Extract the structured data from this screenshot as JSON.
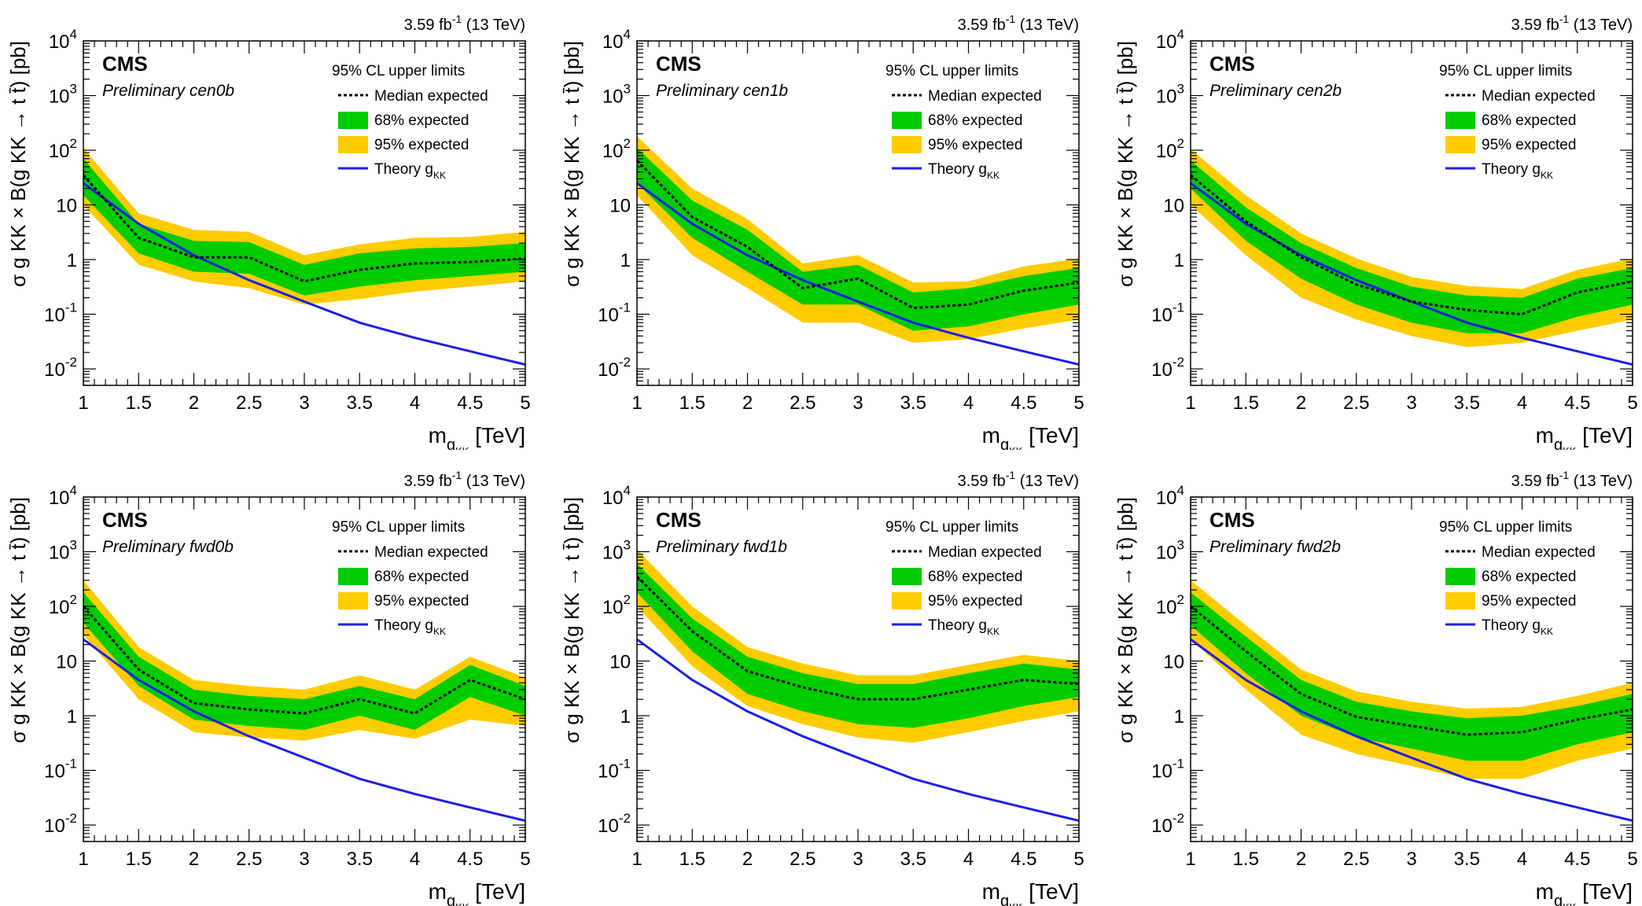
{
  "common": {
    "lumi_prefix": "3.59 fb",
    "lumi_exp": "-1",
    "lumi_suffix": " (13 TeV)",
    "experiment": "CMS",
    "legend_header": "95% CL upper limits",
    "legend_median": "Median expected",
    "legend_68": "68% expected",
    "legend_95": "95% expected",
    "legend_theory": "Theory g",
    "legend_theory_sub": "KK",
    "xlabel_main": "m",
    "xlabel_sub1": "g",
    "xlabel_sub2": "KK",
    "xlabel_unit": "[TeV]",
    "ylabel": "σ g KK × B(g KK → t t̄) [pb]",
    "x_ticks": [
      "1",
      "1.5",
      "2",
      "2.5",
      "3",
      "3.5",
      "4",
      "4.5",
      "5"
    ],
    "y_ticks": [
      {
        "base": "10",
        "exp": "-2"
      },
      {
        "base": "10",
        "exp": "-1"
      },
      {
        "base": "1",
        "exp": ""
      },
      {
        "base": "10",
        "exp": ""
      },
      {
        "base": "10",
        "exp": "2"
      },
      {
        "base": "10",
        "exp": "3"
      },
      {
        "base": "10",
        "exp": "4"
      }
    ],
    "colors": {
      "band68": "#00cc00",
      "band95": "#ffcc00",
      "theory": "#1e1ee6",
      "median": "#000000"
    }
  },
  "chart_data": [
    {
      "type": "line",
      "category": "cen0b",
      "title": "Preliminary cen0b",
      "xlim": [
        1,
        5
      ],
      "ylim": [
        0.005,
        10000
      ],
      "yscale": "log",
      "x": [
        1,
        1.5,
        2,
        2.5,
        3,
        3.5,
        4,
        4.5,
        5
      ],
      "series": [
        {
          "name": "Median expected",
          "values": [
            35,
            2.5,
            1.1,
            1.1,
            0.4,
            0.65,
            0.85,
            0.9,
            1.05
          ]
        },
        {
          "name": "68% expected",
          "lower": [
            15,
            1.3,
            0.6,
            0.55,
            0.22,
            0.32,
            0.42,
            0.5,
            0.6
          ],
          "upper": [
            70,
            4.5,
            2.2,
            2.1,
            0.8,
            1.3,
            1.6,
            1.7,
            2.0
          ]
        },
        {
          "name": "95% expected",
          "lower": [
            10,
            0.8,
            0.4,
            0.3,
            0.15,
            0.19,
            0.26,
            0.32,
            0.4
          ],
          "upper": [
            110,
            7,
            3.5,
            3.2,
            1.2,
            1.9,
            2.5,
            2.6,
            3.2
          ]
        },
        {
          "name": "Theory gKK",
          "values": [
            25,
            4.5,
            1.2,
            0.42,
            0.17,
            0.07,
            0.037,
            0.021,
            0.012
          ]
        }
      ]
    },
    {
      "type": "line",
      "category": "cen1b",
      "title": "Preliminary cen1b",
      "xlim": [
        1,
        5
      ],
      "ylim": [
        0.005,
        10000
      ],
      "yscale": "log",
      "x": [
        1,
        1.5,
        2,
        2.5,
        3,
        3.5,
        4,
        4.5,
        5
      ],
      "series": [
        {
          "name": "Median expected",
          "values": [
            65,
            6,
            1.7,
            0.3,
            0.45,
            0.13,
            0.15,
            0.27,
            0.38
          ]
        },
        {
          "name": "68% expected",
          "lower": [
            25,
            2.5,
            0.6,
            0.15,
            0.15,
            0.05,
            0.06,
            0.1,
            0.15
          ],
          "upper": [
            110,
            12,
            3.5,
            0.6,
            0.8,
            0.25,
            0.3,
            0.5,
            0.7
          ]
        },
        {
          "name": "95% expected",
          "lower": [
            15,
            1.2,
            0.3,
            0.07,
            0.07,
            0.03,
            0.035,
            0.055,
            0.08
          ],
          "upper": [
            180,
            20,
            5.5,
            0.85,
            1.2,
            0.38,
            0.4,
            0.75,
            1.05
          ]
        },
        {
          "name": "Theory gKK",
          "values": [
            25,
            4.5,
            1.2,
            0.42,
            0.17,
            0.07,
            0.037,
            0.021,
            0.012
          ]
        }
      ]
    },
    {
      "type": "line",
      "category": "cen2b",
      "title": "Preliminary cen2b",
      "xlim": [
        1,
        5
      ],
      "ylim": [
        0.005,
        10000
      ],
      "yscale": "log",
      "x": [
        1,
        1.5,
        2,
        2.5,
        3,
        3.5,
        4,
        4.5,
        5
      ],
      "series": [
        {
          "name": "Median expected",
          "values": [
            35,
            5,
            1.1,
            0.35,
            0.17,
            0.12,
            0.1,
            0.25,
            0.4
          ]
        },
        {
          "name": "68% expected",
          "lower": [
            20,
            2.2,
            0.45,
            0.15,
            0.07,
            0.045,
            0.045,
            0.09,
            0.15
          ],
          "upper": [
            65,
            9,
            2.0,
            0.7,
            0.32,
            0.22,
            0.2,
            0.45,
            0.7
          ]
        },
        {
          "name": "95% expected",
          "lower": [
            10,
            1.2,
            0.2,
            0.08,
            0.04,
            0.025,
            0.03,
            0.05,
            0.08
          ],
          "upper": [
            105,
            15,
            3.0,
            1.05,
            0.48,
            0.33,
            0.29,
            0.65,
            1.05
          ]
        },
        {
          "name": "Theory gKK",
          "values": [
            25,
            4.5,
            1.2,
            0.42,
            0.17,
            0.07,
            0.037,
            0.021,
            0.012
          ]
        }
      ]
    },
    {
      "type": "line",
      "category": "fwd0b",
      "title": "Preliminary fwd0b",
      "xlim": [
        1,
        5
      ],
      "ylim": [
        0.005,
        10000
      ],
      "yscale": "log",
      "x": [
        1,
        1.5,
        2,
        2.5,
        3,
        3.5,
        4,
        4.5,
        5
      ],
      "series": [
        {
          "name": "Median expected",
          "values": [
            100,
            7,
            1.7,
            1.3,
            1.1,
            2.0,
            1.1,
            4.5,
            2.0
          ]
        },
        {
          "name": "68% expected",
          "lower": [
            50,
            3.5,
            0.85,
            0.65,
            0.55,
            1.0,
            0.55,
            2.2,
            1.0
          ],
          "upper": [
            180,
            12,
            3.0,
            2.3,
            2.0,
            3.5,
            2.0,
            8.5,
            3.5
          ]
        },
        {
          "name": "95% expected",
          "lower": [
            30,
            2,
            0.5,
            0.4,
            0.35,
            0.55,
            0.38,
            0.85,
            0.65
          ],
          "upper": [
            300,
            18,
            4.5,
            3.5,
            3.0,
            5.5,
            3.0,
            12,
            5.0
          ]
        },
        {
          "name": "Theory gKK",
          "values": [
            25,
            4.5,
            1.2,
            0.42,
            0.17,
            0.07,
            0.037,
            0.021,
            0.012
          ]
        }
      ]
    },
    {
      "type": "line",
      "category": "fwd1b",
      "title": "Preliminary fwd1b",
      "xlim": [
        1,
        5
      ],
      "ylim": [
        0.005,
        10000
      ],
      "yscale": "log",
      "x": [
        1,
        1.5,
        2,
        2.5,
        3,
        3.5,
        4,
        4.5,
        5
      ],
      "series": [
        {
          "name": "Median expected",
          "values": [
            350,
            35,
            6.5,
            3.3,
            2.0,
            2.0,
            3.0,
            4.5,
            3.8
          ]
        },
        {
          "name": "68% expected",
          "lower": [
            180,
            15,
            2.5,
            1.2,
            0.7,
            0.6,
            0.9,
            1.5,
            2.2
          ],
          "upper": [
            600,
            60,
            12,
            6,
            3.8,
            3.8,
            6,
            9,
            7
          ]
        },
        {
          "name": "95% expected",
          "lower": [
            100,
            8,
            1.5,
            0.7,
            0.4,
            0.32,
            0.5,
            0.8,
            1.2
          ],
          "upper": [
            1100,
            100,
            18,
            9,
            5.5,
            5.5,
            8.5,
            13,
            10
          ]
        },
        {
          "name": "Theory gKK",
          "values": [
            25,
            4.5,
            1.2,
            0.42,
            0.17,
            0.07,
            0.037,
            0.021,
            0.012
          ]
        }
      ]
    },
    {
      "type": "line",
      "category": "fwd2b",
      "title": "Preliminary fwd2b",
      "xlim": [
        1,
        5
      ],
      "ylim": [
        0.005,
        10000
      ],
      "yscale": "log",
      "x": [
        1,
        1.5,
        2,
        2.5,
        3,
        3.5,
        4,
        4.5,
        5
      ],
      "series": [
        {
          "name": "Median expected",
          "values": [
            100,
            15,
            2.5,
            0.95,
            0.65,
            0.45,
            0.5,
            0.85,
            1.3
          ]
        },
        {
          "name": "68% expected",
          "lower": [
            45,
            6,
            1.0,
            0.4,
            0.25,
            0.15,
            0.15,
            0.3,
            0.5
          ],
          "upper": [
            180,
            28,
            4.5,
            1.8,
            1.2,
            0.9,
            1.0,
            1.5,
            2.5
          ]
        },
        {
          "name": "95% expected",
          "lower": [
            25,
            3,
            0.45,
            0.2,
            0.12,
            0.07,
            0.07,
            0.15,
            0.25
          ],
          "upper": [
            300,
            45,
            7,
            2.8,
            1.8,
            1.35,
            1.45,
            2.3,
            4.0
          ]
        },
        {
          "name": "Theory gKK",
          "values": [
            25,
            4.5,
            1.2,
            0.42,
            0.17,
            0.07,
            0.037,
            0.021,
            0.012
          ]
        }
      ]
    }
  ]
}
